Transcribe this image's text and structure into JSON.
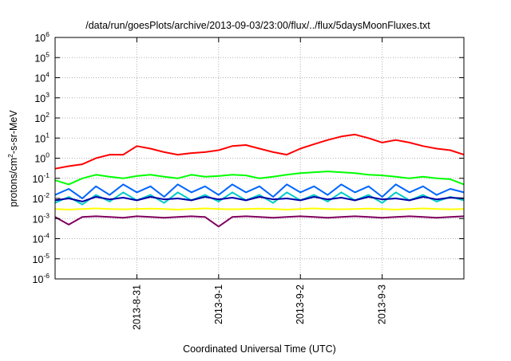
{
  "chart_data": {
    "type": "line",
    "title": "/data/run/goesPlots/archive/2013-09-03/23:00/flux/../flux/5daysMoonFluxes.txt",
    "xlabel": "Coordinated Universal Time (UTC)",
    "ylabel_parts": {
      "base": "protons/cm",
      "sup": "2",
      "rest": "-s-sr-MeV"
    },
    "y_scale": "log",
    "ylim": [
      1e-06,
      1000000.0
    ],
    "xlim": [
      "2013-08-30T00:00",
      "2013-09-03T23:59"
    ],
    "grid": true,
    "y_ticks": [
      {
        "value": 1e-06,
        "base": "10",
        "exp": "-6"
      },
      {
        "value": 1e-05,
        "base": "10",
        "exp": "-5"
      },
      {
        "value": 0.0001,
        "base": "10",
        "exp": "-4"
      },
      {
        "value": 0.001,
        "base": "10",
        "exp": "-3"
      },
      {
        "value": 0.01,
        "base": "10",
        "exp": "-2"
      },
      {
        "value": 0.1,
        "base": "10",
        "exp": "-1"
      },
      {
        "value": 1,
        "base": "10",
        "exp": "0"
      },
      {
        "value": 10,
        "base": "10",
        "exp": "1"
      },
      {
        "value": 100,
        "base": "10",
        "exp": "2"
      },
      {
        "value": 1000,
        "base": "10",
        "exp": "3"
      },
      {
        "value": 10000,
        "base": "10",
        "exp": "4"
      },
      {
        "value": 100000,
        "base": "10",
        "exp": "5"
      },
      {
        "value": 1000000,
        "base": "10",
        "exp": "6"
      }
    ],
    "x_ticks": [
      {
        "value": "2013-08-31T00:00",
        "label": "2013-8-31"
      },
      {
        "value": "2013-09-01T00:00",
        "label": "2013-9-1"
      },
      {
        "value": "2013-09-02T00:00",
        "label": "2013-9-2"
      },
      {
        "value": "2013-09-03T00:00",
        "label": "2013-9-3"
      }
    ],
    "series": [
      {
        "color": "#ff0000",
        "x": [
          "2013-08-30T00:00",
          "2013-08-30T04:00",
          "2013-08-30T08:00",
          "2013-08-30T12:00",
          "2013-08-30T16:00",
          "2013-08-30T20:00",
          "2013-08-31T00:00",
          "2013-08-31T04:00",
          "2013-08-31T08:00",
          "2013-08-31T12:00",
          "2013-08-31T16:00",
          "2013-08-31T20:00",
          "2013-09-01T00:00",
          "2013-09-01T04:00",
          "2013-09-01T08:00",
          "2013-09-01T12:00",
          "2013-09-01T16:00",
          "2013-09-01T20:00",
          "2013-09-02T00:00",
          "2013-09-02T04:00",
          "2013-09-02T08:00",
          "2013-09-02T12:00",
          "2013-09-02T16:00",
          "2013-09-02T20:00",
          "2013-09-03T00:00",
          "2013-09-03T04:00",
          "2013-09-03T08:00",
          "2013-09-03T12:00",
          "2013-09-03T16:00",
          "2013-09-03T20:00",
          "2013-09-03T23:59"
        ],
        "values": [
          0.3,
          0.4,
          0.5,
          1.0,
          1.5,
          1.5,
          4.0,
          3.0,
          2.0,
          1.5,
          1.8,
          2.0,
          2.5,
          4.0,
          4.5,
          3.0,
          2.0,
          1.5,
          3.0,
          5.0,
          8.0,
          12.0,
          15.0,
          10.0,
          6.0,
          8.0,
          6.0,
          4.0,
          3.0,
          2.5,
          1.5
        ]
      },
      {
        "color": "#00ff00",
        "x": [
          "2013-08-30T00:00",
          "2013-08-30T04:00",
          "2013-08-30T08:00",
          "2013-08-30T12:00",
          "2013-08-30T16:00",
          "2013-08-30T20:00",
          "2013-08-31T00:00",
          "2013-08-31T04:00",
          "2013-08-31T08:00",
          "2013-08-31T12:00",
          "2013-08-31T16:00",
          "2013-08-31T20:00",
          "2013-09-01T00:00",
          "2013-09-01T04:00",
          "2013-09-01T08:00",
          "2013-09-01T12:00",
          "2013-09-01T16:00",
          "2013-09-01T20:00",
          "2013-09-02T00:00",
          "2013-09-02T04:00",
          "2013-09-02T08:00",
          "2013-09-02T12:00",
          "2013-09-02T16:00",
          "2013-09-02T20:00",
          "2013-09-03T00:00",
          "2013-09-03T04:00",
          "2013-09-03T08:00",
          "2013-09-03T12:00",
          "2013-09-03T16:00",
          "2013-09-03T20:00",
          "2013-09-03T23:59"
        ],
        "values": [
          0.08,
          0.05,
          0.1,
          0.15,
          0.12,
          0.1,
          0.13,
          0.15,
          0.12,
          0.1,
          0.15,
          0.12,
          0.13,
          0.15,
          0.14,
          0.1,
          0.12,
          0.15,
          0.18,
          0.2,
          0.22,
          0.2,
          0.18,
          0.15,
          0.14,
          0.12,
          0.1,
          0.12,
          0.1,
          0.09,
          0.05
        ]
      },
      {
        "color": "#0066ff",
        "x": [
          "2013-08-30T00:00",
          "2013-08-30T04:00",
          "2013-08-30T08:00",
          "2013-08-30T12:00",
          "2013-08-30T16:00",
          "2013-08-30T20:00",
          "2013-08-31T00:00",
          "2013-08-31T04:00",
          "2013-08-31T08:00",
          "2013-08-31T12:00",
          "2013-08-31T16:00",
          "2013-08-31T20:00",
          "2013-09-01T00:00",
          "2013-09-01T04:00",
          "2013-09-01T08:00",
          "2013-09-01T12:00",
          "2013-09-01T16:00",
          "2013-09-01T20:00",
          "2013-09-02T00:00",
          "2013-09-02T04:00",
          "2013-09-02T08:00",
          "2013-09-02T12:00",
          "2013-09-02T16:00",
          "2013-09-02T20:00",
          "2013-09-03T00:00",
          "2013-09-03T04:00",
          "2013-09-03T08:00",
          "2013-09-03T12:00",
          "2013-09-03T16:00",
          "2013-09-03T20:00",
          "2013-09-03T23:59"
        ],
        "values": [
          0.015,
          0.03,
          0.01,
          0.04,
          0.015,
          0.05,
          0.02,
          0.04,
          0.012,
          0.05,
          0.02,
          0.04,
          0.015,
          0.05,
          0.02,
          0.04,
          0.012,
          0.05,
          0.02,
          0.04,
          0.015,
          0.05,
          0.02,
          0.04,
          0.012,
          0.05,
          0.02,
          0.04,
          0.015,
          0.03,
          0.02
        ]
      },
      {
        "color": "#00cccc",
        "x": [
          "2013-08-30T00:00",
          "2013-08-30T04:00",
          "2013-08-30T08:00",
          "2013-08-30T12:00",
          "2013-08-30T16:00",
          "2013-08-30T20:00",
          "2013-08-31T00:00",
          "2013-08-31T04:00",
          "2013-08-31T08:00",
          "2013-08-31T12:00",
          "2013-08-31T16:00",
          "2013-08-31T20:00",
          "2013-09-01T00:00",
          "2013-09-01T04:00",
          "2013-09-01T08:00",
          "2013-09-01T12:00",
          "2013-09-01T16:00",
          "2013-09-01T20:00",
          "2013-09-02T00:00",
          "2013-09-02T04:00",
          "2013-09-02T08:00",
          "2013-09-02T12:00",
          "2013-09-02T16:00",
          "2013-09-02T20:00",
          "2013-09-03T00:00",
          "2013-09-03T04:00",
          "2013-09-03T08:00",
          "2013-09-03T12:00",
          "2013-09-03T16:00",
          "2013-09-03T20:00",
          "2013-09-03T23:59"
        ],
        "values": [
          0.006,
          0.012,
          0.005,
          0.015,
          0.007,
          0.02,
          0.008,
          0.015,
          0.006,
          0.02,
          0.008,
          0.015,
          0.007,
          0.02,
          0.008,
          0.015,
          0.006,
          0.02,
          0.008,
          0.015,
          0.007,
          0.02,
          0.008,
          0.015,
          0.006,
          0.02,
          0.008,
          0.015,
          0.007,
          0.012,
          0.008
        ]
      },
      {
        "color": "#0000aa",
        "x": [
          "2013-08-30T00:00",
          "2013-08-30T04:00",
          "2013-08-30T08:00",
          "2013-08-30T12:00",
          "2013-08-30T16:00",
          "2013-08-30T20:00",
          "2013-08-31T00:00",
          "2013-08-31T04:00",
          "2013-08-31T08:00",
          "2013-08-31T12:00",
          "2013-08-31T16:00",
          "2013-08-31T20:00",
          "2013-09-01T00:00",
          "2013-09-01T04:00",
          "2013-09-01T08:00",
          "2013-09-01T12:00",
          "2013-09-01T16:00",
          "2013-09-01T20:00",
          "2013-09-02T00:00",
          "2013-09-02T04:00",
          "2013-09-02T08:00",
          "2013-09-02T12:00",
          "2013-09-02T16:00",
          "2013-09-02T20:00",
          "2013-09-03T00:00",
          "2013-09-03T04:00",
          "2013-09-03T08:00",
          "2013-09-03T12:00",
          "2013-09-03T16:00",
          "2013-09-03T20:00",
          "2013-09-03T23:59"
        ],
        "values": [
          0.008,
          0.01,
          0.007,
          0.012,
          0.009,
          0.011,
          0.008,
          0.012,
          0.009,
          0.01,
          0.008,
          0.012,
          0.009,
          0.011,
          0.008,
          0.012,
          0.009,
          0.01,
          0.008,
          0.012,
          0.009,
          0.011,
          0.008,
          0.012,
          0.009,
          0.01,
          0.008,
          0.012,
          0.009,
          0.011,
          0.01
        ]
      },
      {
        "color": "#ffff00",
        "x": [
          "2013-08-30T00:00",
          "2013-08-30T04:00",
          "2013-08-30T08:00",
          "2013-08-30T12:00",
          "2013-08-30T16:00",
          "2013-08-30T20:00",
          "2013-08-31T00:00",
          "2013-08-31T04:00",
          "2013-08-31T08:00",
          "2013-08-31T12:00",
          "2013-08-31T16:00",
          "2013-08-31T20:00",
          "2013-09-01T00:00",
          "2013-09-01T04:00",
          "2013-09-01T08:00",
          "2013-09-01T12:00",
          "2013-09-01T16:00",
          "2013-09-01T20:00",
          "2013-09-02T00:00",
          "2013-09-02T04:00",
          "2013-09-02T08:00",
          "2013-09-02T12:00",
          "2013-09-02T16:00",
          "2013-09-02T20:00",
          "2013-09-03T00:00",
          "2013-09-03T04:00",
          "2013-09-03T08:00",
          "2013-09-03T12:00",
          "2013-09-03T16:00",
          "2013-09-03T20:00",
          "2013-09-03T23:59"
        ],
        "values": [
          0.003,
          0.0028,
          0.003,
          0.0032,
          0.003,
          0.0029,
          0.003,
          0.0031,
          0.003,
          0.0028,
          0.003,
          0.0032,
          0.003,
          0.0029,
          0.003,
          0.0031,
          0.003,
          0.0028,
          0.003,
          0.0032,
          0.003,
          0.0029,
          0.003,
          0.0031,
          0.003,
          0.0028,
          0.003,
          0.0032,
          0.003,
          0.0029,
          0.003
        ]
      },
      {
        "color": "#800060",
        "x": [
          "2013-08-30T00:00",
          "2013-08-30T04:00",
          "2013-08-30T08:00",
          "2013-08-30T12:00",
          "2013-08-30T16:00",
          "2013-08-30T20:00",
          "2013-08-31T00:00",
          "2013-08-31T04:00",
          "2013-08-31T08:00",
          "2013-08-31T12:00",
          "2013-08-31T16:00",
          "2013-08-31T20:00",
          "2013-09-01T00:00",
          "2013-09-01T04:00",
          "2013-09-01T08:00",
          "2013-09-01T12:00",
          "2013-09-01T16:00",
          "2013-09-01T20:00",
          "2013-09-02T00:00",
          "2013-09-02T04:00",
          "2013-09-02T08:00",
          "2013-09-02T12:00",
          "2013-09-02T16:00",
          "2013-09-02T20:00",
          "2013-09-03T00:00",
          "2013-09-03T04:00",
          "2013-09-03T08:00",
          "2013-09-03T12:00",
          "2013-09-03T16:00",
          "2013-09-03T20:00",
          "2013-09-03T23:59"
        ],
        "values": [
          0.0012,
          0.0005,
          0.0012,
          0.0013,
          0.0012,
          0.0011,
          0.0013,
          0.0012,
          0.0011,
          0.0012,
          0.0013,
          0.0012,
          0.0004,
          0.0012,
          0.0013,
          0.0012,
          0.0011,
          0.0012,
          0.0013,
          0.0012,
          0.0011,
          0.0012,
          0.0013,
          0.0012,
          0.0011,
          0.0012,
          0.0013,
          0.0012,
          0.0011,
          0.0012,
          0.0013
        ]
      }
    ]
  }
}
